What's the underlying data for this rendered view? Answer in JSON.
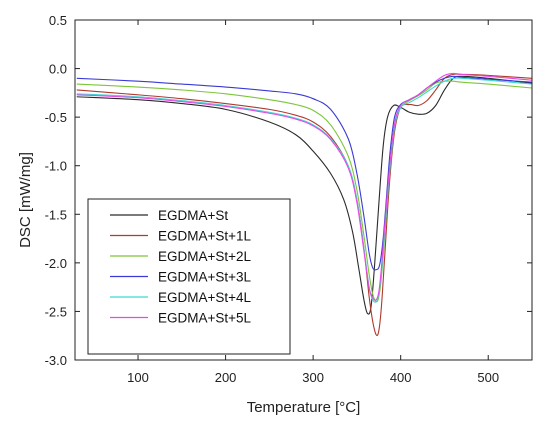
{
  "chart_data": {
    "type": "line",
    "title": "",
    "xlabel": "Temperature [°C]",
    "ylabel": "DSC [mW/mg]",
    "xlim": [
      28,
      550
    ],
    "ylim": [
      -3.0,
      0.5
    ],
    "xticks": [
      100,
      200,
      300,
      400,
      500
    ],
    "yticks": [
      0.5,
      0.0,
      -0.5,
      -1.0,
      -1.5,
      -2.0,
      -2.5,
      -3.0
    ],
    "ytick_labels": [
      "0.5",
      "0.0",
      "-0.5",
      "-1.0",
      "-1.5",
      "-2.0",
      "-2.5",
      "-3.0"
    ],
    "grid": false,
    "legend_position": "bottom-left",
    "series": [
      {
        "name": "EGDMA+St",
        "color": "#2b2b2b",
        "x": [
          30,
          100,
          150,
          200,
          250,
          280,
          300,
          320,
          335,
          345,
          352,
          358,
          362,
          366,
          370,
          375,
          380,
          385,
          392,
          400,
          410,
          420,
          430,
          440,
          450,
          460,
          470,
          500,
          550
        ],
        "y": [
          -0.29,
          -0.32,
          -0.36,
          -0.42,
          -0.55,
          -0.68,
          -0.85,
          -1.08,
          -1.35,
          -1.68,
          -2.05,
          -2.38,
          -2.52,
          -2.46,
          -2.05,
          -1.4,
          -0.8,
          -0.5,
          -0.38,
          -0.4,
          -0.45,
          -0.47,
          -0.46,
          -0.38,
          -0.22,
          -0.1,
          -0.08,
          -0.1,
          -0.15
        ]
      },
      {
        "name": "EGDMA+St+1L",
        "color": "#b03a2e",
        "x": [
          30,
          100,
          150,
          200,
          250,
          280,
          300,
          320,
          340,
          350,
          358,
          364,
          368,
          372,
          375,
          378,
          382,
          387,
          393,
          400,
          410,
          420,
          430,
          440,
          450,
          460,
          470,
          500,
          550
        ],
        "y": [
          -0.22,
          -0.27,
          -0.31,
          -0.36,
          -0.42,
          -0.48,
          -0.55,
          -0.7,
          -1.0,
          -1.35,
          -1.85,
          -2.35,
          -2.6,
          -2.74,
          -2.7,
          -2.45,
          -1.9,
          -1.2,
          -0.65,
          -0.4,
          -0.37,
          -0.38,
          -0.33,
          -0.22,
          -0.1,
          -0.06,
          -0.06,
          -0.07,
          -0.1
        ]
      },
      {
        "name": "EGDMA+St+2L",
        "color": "#7cc63b",
        "x": [
          30,
          100,
          150,
          200,
          250,
          280,
          300,
          320,
          340,
          350,
          358,
          364,
          368,
          372,
          375,
          378,
          382,
          387,
          393,
          400,
          410,
          420,
          430,
          440,
          450,
          460,
          470,
          500,
          550
        ],
        "y": [
          -0.16,
          -0.19,
          -0.22,
          -0.26,
          -0.32,
          -0.37,
          -0.43,
          -0.58,
          -0.9,
          -1.25,
          -1.72,
          -2.12,
          -2.32,
          -2.4,
          -2.35,
          -2.15,
          -1.7,
          -1.1,
          -0.6,
          -0.4,
          -0.33,
          -0.28,
          -0.22,
          -0.15,
          -0.13,
          -0.13,
          -0.14,
          -0.16,
          -0.2
        ]
      },
      {
        "name": "EGDMA+St+3L",
        "color": "#3a3ad6",
        "x": [
          30,
          100,
          150,
          200,
          250,
          280,
          300,
          320,
          340,
          350,
          358,
          364,
          368,
          372,
          376,
          380,
          384,
          388,
          393,
          400,
          410,
          420,
          430,
          440,
          450,
          460,
          470,
          500,
          550
        ],
        "y": [
          -0.1,
          -0.13,
          -0.16,
          -0.19,
          -0.23,
          -0.26,
          -0.31,
          -0.42,
          -0.72,
          -1.08,
          -1.52,
          -1.9,
          -2.05,
          -2.07,
          -2.02,
          -1.75,
          -1.3,
          -0.85,
          -0.5,
          -0.37,
          -0.32,
          -0.27,
          -0.2,
          -0.14,
          -0.1,
          -0.08,
          -0.09,
          -0.11,
          -0.14
        ]
      },
      {
        "name": "EGDMA+St+4L",
        "color": "#3ed8d8",
        "x": [
          30,
          100,
          150,
          200,
          250,
          280,
          300,
          320,
          340,
          350,
          358,
          364,
          368,
          372,
          375,
          378,
          382,
          387,
          393,
          400,
          410,
          420,
          430,
          440,
          450,
          460,
          470,
          500,
          550
        ],
        "y": [
          -0.26,
          -0.29,
          -0.33,
          -0.38,
          -0.45,
          -0.51,
          -0.58,
          -0.72,
          -1.0,
          -1.35,
          -1.85,
          -2.25,
          -2.38,
          -2.4,
          -2.32,
          -2.1,
          -1.65,
          -1.1,
          -0.6,
          -0.4,
          -0.35,
          -0.3,
          -0.24,
          -0.18,
          -0.13,
          -0.1,
          -0.1,
          -0.12,
          -0.16
        ]
      },
      {
        "name": "EGDMA+St+5L",
        "color": "#e64ae6",
        "x": [
          30,
          100,
          150,
          200,
          250,
          280,
          300,
          320,
          340,
          350,
          358,
          364,
          368,
          372,
          375,
          378,
          382,
          387,
          393,
          400,
          410,
          420,
          430,
          440,
          450,
          460,
          470,
          500,
          550
        ],
        "y": [
          -0.27,
          -0.3,
          -0.34,
          -0.39,
          -0.46,
          -0.52,
          -0.59,
          -0.73,
          -1.02,
          -1.38,
          -1.88,
          -2.26,
          -2.36,
          -2.38,
          -2.3,
          -2.05,
          -1.6,
          -1.05,
          -0.57,
          -0.38,
          -0.32,
          -0.27,
          -0.2,
          -0.13,
          -0.07,
          -0.05,
          -0.06,
          -0.08,
          -0.12
        ]
      }
    ]
  }
}
